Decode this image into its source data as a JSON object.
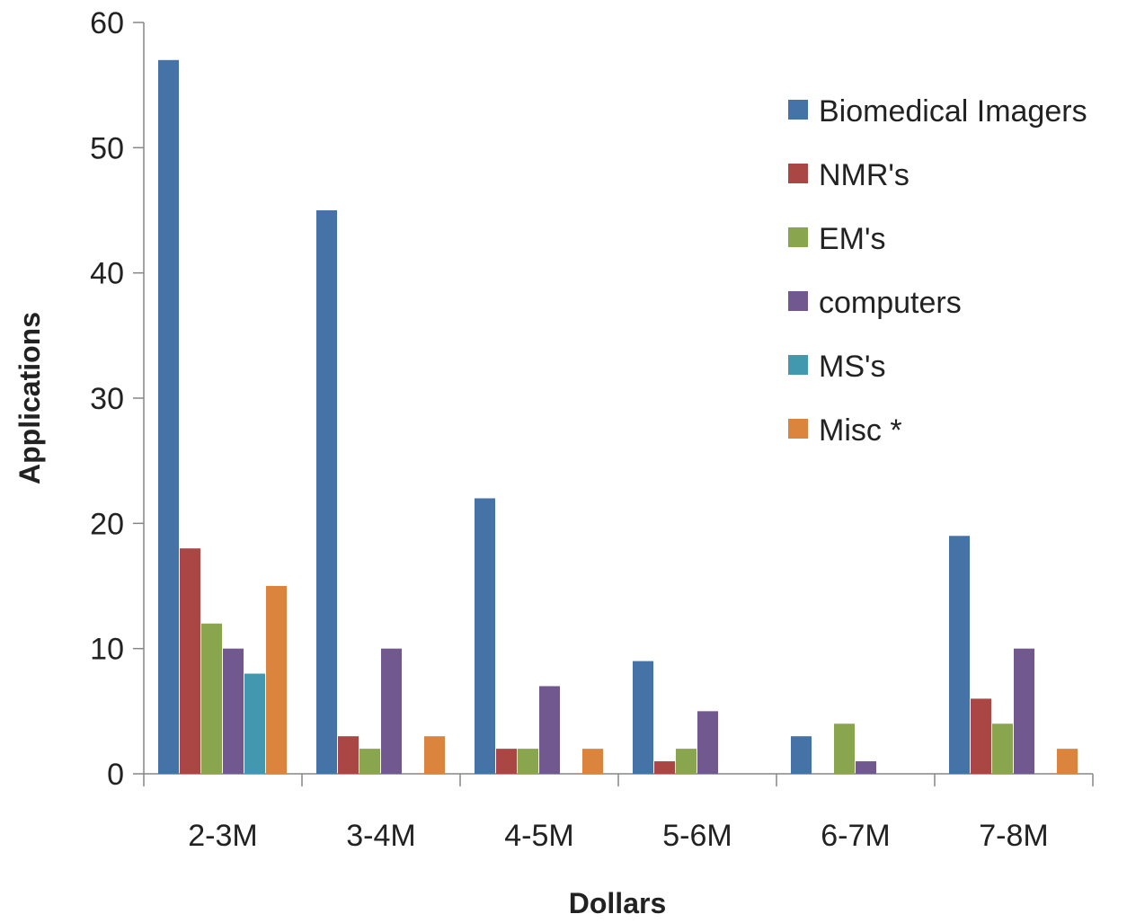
{
  "chart_data": {
    "type": "bar",
    "title": "",
    "xlabel": "Dollars",
    "ylabel": "Applications",
    "ylim": [
      0,
      60
    ],
    "yticks": [
      0,
      10,
      20,
      30,
      40,
      50,
      60
    ],
    "grid": false,
    "legend_position": "top-right",
    "categories": [
      "2-3M",
      "3-4M",
      "4-5M",
      "5-6M",
      "6-7M",
      "7-8M"
    ],
    "series": [
      {
        "name": "Biomedical Imagers",
        "color": "#4572A7",
        "values": [
          57,
          45,
          22,
          9,
          3,
          19
        ]
      },
      {
        "name": "NMR's",
        "color": "#AA4643",
        "values": [
          18,
          3,
          2,
          1,
          0,
          6
        ]
      },
      {
        "name": "EM's",
        "color": "#89A54E",
        "values": [
          12,
          2,
          2,
          2,
          4,
          4
        ]
      },
      {
        "name": "computers",
        "color": "#71588F",
        "values": [
          10,
          10,
          7,
          5,
          1,
          10
        ]
      },
      {
        "name": "MS's",
        "color": "#4198AF",
        "values": [
          8,
          0,
          0,
          0,
          0,
          0
        ]
      },
      {
        "name": "Misc *",
        "color": "#DB843D",
        "values": [
          15,
          3,
          2,
          0,
          0,
          2
        ]
      }
    ]
  }
}
